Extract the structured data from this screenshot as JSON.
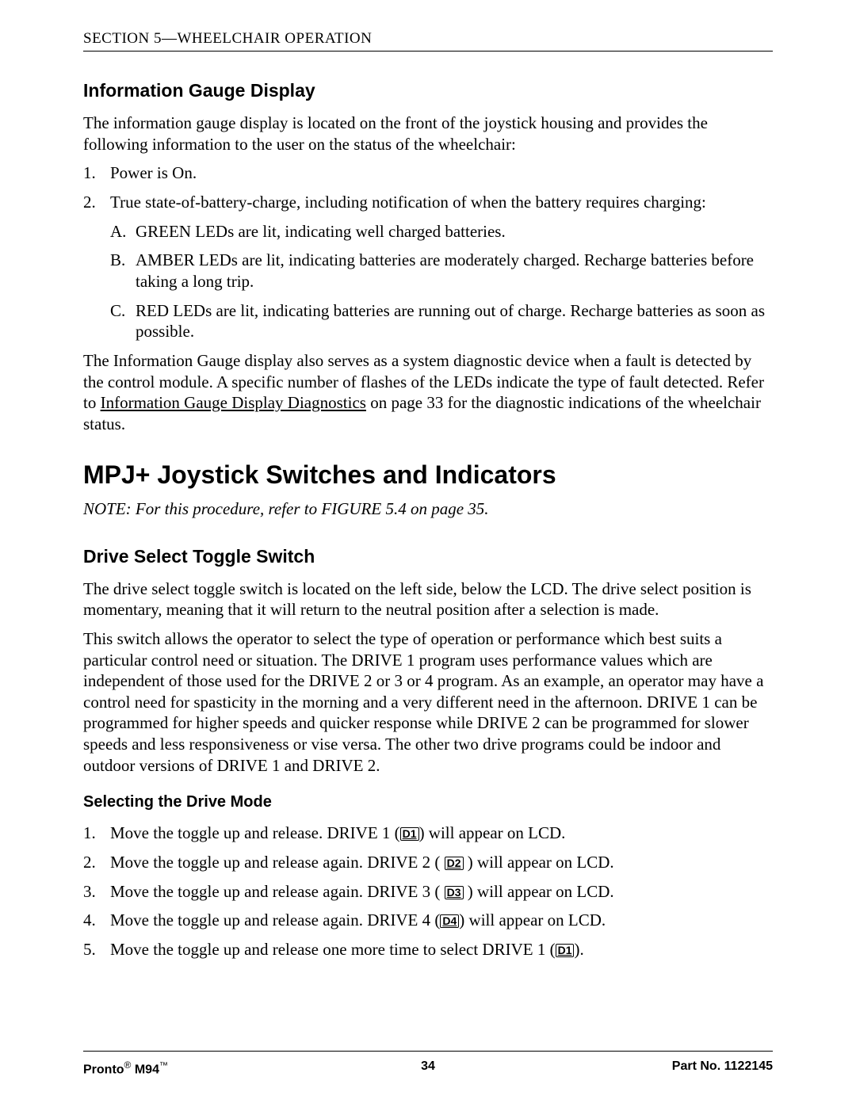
{
  "section_header": "SECTION 5—WHEELCHAIR OPERATION",
  "h3_info_gauge": "Information Gauge Display",
  "p_intro": "The information gauge display is located on the front of the joystick housing and provides the following information to the user on the status of the wheelchair:",
  "list1": {
    "i1_num": "1.",
    "i1_text": "Power is On.",
    "i2_num": "2.",
    "i2_text": "True state-of-battery-charge, including notification of when the battery requires charging:",
    "a_letter": "A.",
    "a_text": "GREEN LEDs are lit, indicating well charged batteries.",
    "b_letter": "B.",
    "b_text": "AMBER LEDs are lit, indicating batteries are moderately charged. Recharge batteries before taking a long trip.",
    "c_letter": "C.",
    "c_text": "RED LEDs are lit, indicating batteries are running out of charge. Recharge batteries as soon as possible."
  },
  "p_diag_pre": "The Information Gauge display also serves as a system diagnostic device when a fault is detected by the control module. A specific number of flashes of the LEDs indicate the type of fault detected. Refer to ",
  "p_diag_link": "Information Gauge Display Diagnostics",
  "p_diag_post": " on page 33 for the diagnostic indications of the wheelchair status.",
  "h2_mpj": "MPJ+ Joystick Switches and Indicators",
  "note": "NOTE: For this procedure, refer to FIGURE 5.4 on page 35.",
  "h3_drive": "Drive Select Toggle Switch",
  "p_drive1": "The drive select toggle switch is located on the left side, below the LCD. The drive select position is momentary, meaning that it will return to the neutral position after a selection is made.",
  "p_drive2": "This switch allows the operator to select the type of operation or performance which best suits a particular control need or situation. The DRIVE 1 program uses performance values which are independent of those used for the DRIVE 2 or 3 or 4 program. As an example, an operator may have a control need for spasticity in the morning and a very different need in the afternoon. DRIVE 1 can be programmed for higher speeds and quicker response while DRIVE 2 can be programmed for slower speeds and less responsiveness or vise versa. The other two drive programs could be indoor and outdoor versions of DRIVE 1 and DRIVE 2.",
  "h4_select": "Selecting the Drive Mode",
  "steps": {
    "s1_num": "1.",
    "s1_pre": "Move the toggle up and release. DRIVE 1 (",
    "s1_icon": "D1",
    "s1_post": ") will appear on LCD.",
    "s2_num": "2.",
    "s2_pre": "Move the toggle up and release again. DRIVE 2 ( ",
    "s2_icon": "D2",
    "s2_post": " ) will appear on LCD.",
    "s3_num": "3.",
    "s3_pre": "Move the toggle up and release again. DRIVE 3 ( ",
    "s3_icon": "D3",
    "s3_post": " ) will appear on LCD.",
    "s4_num": "4.",
    "s4_pre": "Move the toggle up and release again. DRIVE 4 (",
    "s4_icon": "D4",
    "s4_post": ") will appear on LCD.",
    "s5_num": "5.",
    "s5_pre": "Move the toggle up and release one more time to select DRIVE 1 (",
    "s5_icon": "D1",
    "s5_post": ")."
  },
  "footer": {
    "brand1": "Pronto",
    "reg": "®",
    "brand2": " M94",
    "tm": "™",
    "page": "34",
    "part": "Part No. 1122145"
  }
}
